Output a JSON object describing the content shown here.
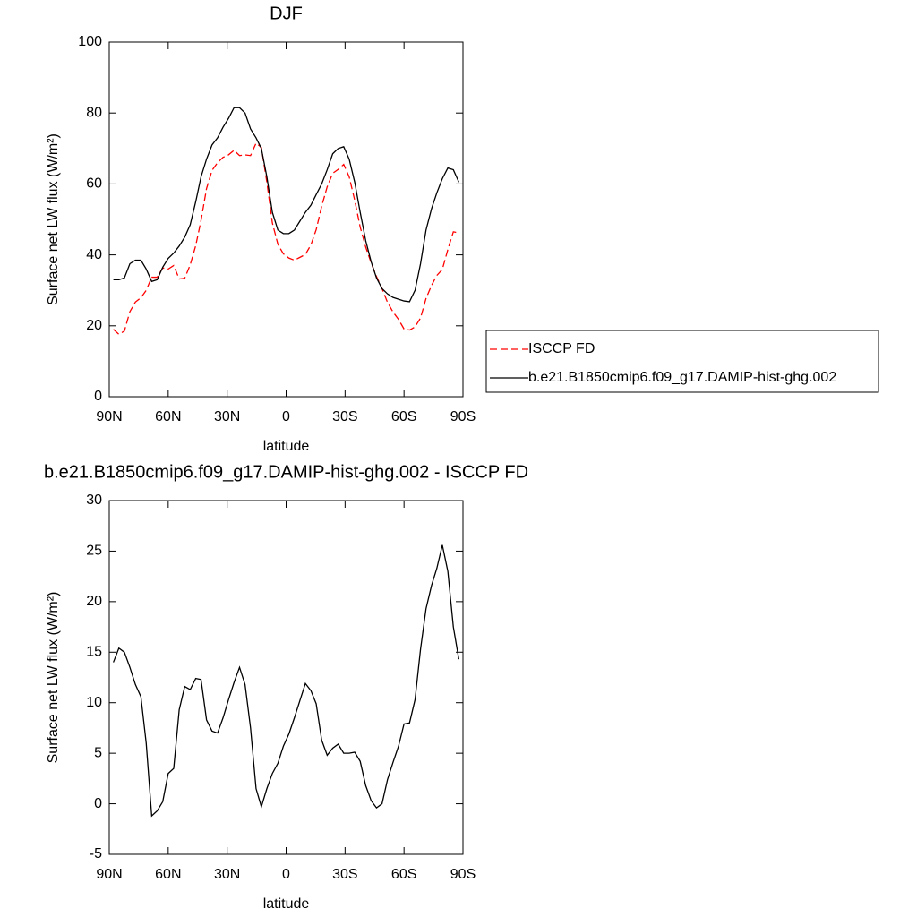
{
  "chart_data": [
    {
      "type": "line",
      "title": "DJF",
      "xlabel": "latitude",
      "ylabel": "Surface net LW flux (W/m²)",
      "xlim": [
        90,
        -90
      ],
      "ylim": [
        0,
        100
      ],
      "xticks": [
        {
          "value": 90,
          "label": "90N"
        },
        {
          "value": 60,
          "label": "60N"
        },
        {
          "value": 30,
          "label": "30N"
        },
        0,
        {
          "value": -30,
          "label": "30S"
        },
        {
          "value": -60,
          "label": "60S"
        },
        {
          "value": -90,
          "label": "90S"
        }
      ],
      "yticks": [
        0,
        20,
        40,
        60,
        80,
        100
      ],
      "legend": "right",
      "x": [
        87.9,
        85.1,
        82.3,
        79.5,
        76.7,
        73.9,
        71.2,
        68.4,
        65.6,
        62.8,
        60.0,
        57.2,
        54.4,
        51.6,
        48.8,
        46.0,
        43.3,
        40.5,
        37.7,
        34.9,
        32.1,
        29.3,
        26.5,
        23.7,
        20.9,
        18.1,
        15.3,
        12.6,
        9.8,
        7.0,
        4.2,
        1.4,
        -1.4,
        -4.2,
        -7.0,
        -9.8,
        -12.6,
        -15.3,
        -18.1,
        -20.9,
        -23.7,
        -26.5,
        -29.3,
        -32.1,
        -34.9,
        -37.7,
        -40.5,
        -43.3,
        -46.0,
        -48.8,
        -51.6,
        -54.4,
        -57.2,
        -60.0,
        -62.8,
        -65.6,
        -68.4,
        -71.2,
        -74.0,
        -76.7,
        -79.5,
        -82.3,
        -85.1,
        -87.9
      ],
      "series": [
        {
          "name": "ISCCP FD",
          "color": "#ff0000",
          "dash": true,
          "values": [
            19,
            17.6,
            18.5,
            24,
            26.7,
            27.9,
            30,
            33.7,
            33.7,
            36.3,
            36,
            37,
            33.2,
            33.4,
            37.2,
            42.6,
            49.7,
            58.7,
            63.8,
            66,
            67.5,
            68.2,
            69.5,
            68,
            68.2,
            68,
            71.5,
            70.3,
            60.5,
            49,
            43,
            40.3,
            39.1,
            38.5,
            39.3,
            40.1,
            42.8,
            47.1,
            53.7,
            59.2,
            63,
            64.1,
            65.5,
            62,
            55.4,
            47.8,
            42.2,
            37.7,
            33.9,
            30.5,
            26.6,
            23.9,
            21.8,
            19.1,
            18.8,
            19.7,
            22.2,
            27.7,
            31.4,
            34.2,
            35.9,
            41.5,
            46.5,
            46.2
          ]
        },
        {
          "name": "b.e21.B1850cmip6.f09_g17.DAMIP-hist-ghg.002",
          "color": "#000000",
          "dash": false,
          "values": [
            33,
            33,
            33.5,
            37.5,
            38.5,
            38.5,
            36,
            32.5,
            33,
            36.5,
            39,
            40.5,
            42.5,
            45,
            48.5,
            55,
            62,
            67,
            71,
            73,
            76,
            78.5,
            81.5,
            81.5,
            80,
            75.5,
            73,
            70,
            62,
            52,
            47,
            46,
            46,
            47,
            49.5,
            52,
            54,
            57,
            60,
            64,
            68.5,
            70,
            70.5,
            67,
            60.5,
            52,
            44,
            38,
            33.5,
            30.5,
            29,
            28,
            27.5,
            27,
            26.8,
            30,
            37.5,
            47,
            53,
            57.5,
            61.5,
            64.5,
            64,
            60.5
          ]
        }
      ]
    },
    {
      "type": "line",
      "title": "b.e21.B1850cmip6.f09_g17.DAMIP-hist-ghg.002 - ISCCP FD",
      "xlabel": "latitude",
      "ylabel": "Surface net LW flux (W/m²)",
      "xlim": [
        90,
        -90
      ],
      "ylim": [
        -5,
        30
      ],
      "xticks": [
        {
          "value": 90,
          "label": "90N"
        },
        {
          "value": 60,
          "label": "60N"
        },
        {
          "value": 30,
          "label": "30N"
        },
        0,
        {
          "value": -30,
          "label": "30S"
        },
        {
          "value": -60,
          "label": "60S"
        },
        {
          "value": -90,
          "label": "90S"
        }
      ],
      "yticks": [
        -5,
        0,
        5,
        10,
        15,
        20,
        25,
        30
      ],
      "x": [
        87.9,
        85.1,
        82.3,
        79.5,
        76.7,
        73.9,
        71.2,
        68.4,
        65.6,
        62.8,
        60.0,
        57.2,
        54.4,
        51.6,
        48.8,
        46.0,
        43.3,
        40.5,
        37.7,
        34.9,
        32.1,
        29.3,
        26.5,
        23.7,
        20.9,
        18.1,
        15.3,
        12.6,
        9.8,
        7.0,
        4.2,
        1.4,
        -1.4,
        -4.2,
        -7.0,
        -9.8,
        -12.6,
        -15.3,
        -18.1,
        -20.9,
        -23.7,
        -26.5,
        -29.3,
        -32.1,
        -34.9,
        -37.7,
        -40.5,
        -43.3,
        -46.0,
        -48.8,
        -51.6,
        -54.4,
        -57.2,
        -60.0,
        -62.8,
        -65.6,
        -68.4,
        -71.2,
        -74.0,
        -76.7,
        -79.5,
        -82.3,
        -85.1,
        -87.9
      ],
      "series": [
        {
          "color": "#000000",
          "dash": false,
          "values": [
            14,
            15.4,
            15,
            13.5,
            11.8,
            10.6,
            6,
            -1.2,
            -0.7,
            0.2,
            3,
            3.5,
            9.3,
            11.6,
            11.3,
            12.4,
            12.3,
            8.3,
            7.2,
            7,
            8.5,
            10.3,
            12,
            13.5,
            11.8,
            7.5,
            1.5,
            -0.3,
            1.5,
            3,
            4,
            5.7,
            6.9,
            8.5,
            10.2,
            11.9,
            11.2,
            9.9,
            6.3,
            4.8,
            5.5,
            5.9,
            5,
            5,
            5.1,
            4.2,
            1.8,
            0.3,
            -0.4,
            0,
            2.4,
            4.1,
            5.7,
            7.9,
            8,
            10.3,
            15.3,
            19.3,
            21.6,
            23.3,
            25.6,
            23,
            17.5,
            14.3
          ]
        }
      ]
    }
  ]
}
